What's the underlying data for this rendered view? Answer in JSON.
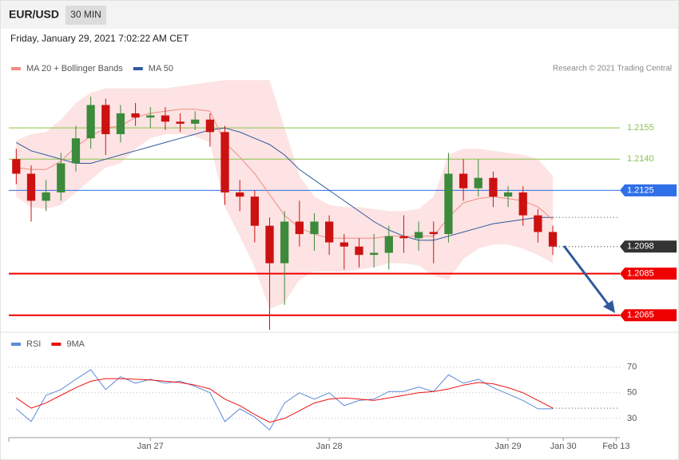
{
  "header": {
    "symbol": "EUR/USD",
    "timeframe": "30 MIN",
    "timestamp": "Friday, January 29, 2021 7:02:22 AM CET"
  },
  "chart_data": [
    {
      "type": "candlestick",
      "credit": "Research © 2021 Trading Central",
      "x": [
        6,
        8,
        10,
        12,
        14,
        16,
        18,
        20,
        22,
        24,
        26,
        28,
        30,
        32,
        34,
        36,
        38,
        40,
        42,
        44,
        46,
        48,
        50,
        52,
        54,
        56,
        58,
        60,
        62,
        64,
        66,
        68,
        70,
        72,
        74,
        76,
        78
      ],
      "open": [
        1.214,
        1.2133,
        1.212,
        1.2124,
        1.2138,
        1.215,
        1.2166,
        1.2152,
        1.2162,
        1.216,
        1.2161,
        1.2158,
        1.2157,
        1.2159,
        1.2153,
        1.2124,
        1.2122,
        1.2108,
        1.209,
        1.211,
        1.2104,
        1.211,
        1.21,
        1.2098,
        1.2094,
        1.2095,
        1.2103,
        1.2102,
        1.2105,
        1.2104,
        1.2133,
        1.2126,
        1.2131,
        1.2122,
        1.2124,
        1.2113,
        1.2105
      ],
      "high": [
        1.2145,
        1.2137,
        1.213,
        1.2143,
        1.2156,
        1.217,
        1.2169,
        1.2166,
        1.2167,
        1.2165,
        1.2165,
        1.2162,
        1.2163,
        1.2162,
        1.2156,
        1.213,
        1.2125,
        1.2112,
        1.2115,
        1.212,
        1.2114,
        1.2113,
        1.2104,
        1.2102,
        1.2104,
        1.2108,
        1.2113,
        1.211,
        1.211,
        1.2143,
        1.214,
        1.214,
        1.2134,
        1.2127,
        1.2127,
        1.2116,
        1.2108
      ],
      "low": [
        1.2128,
        1.211,
        1.2115,
        1.212,
        1.2134,
        1.2145,
        1.2142,
        1.2148,
        1.2156,
        1.2155,
        1.2154,
        1.2153,
        1.2154,
        1.2146,
        1.2118,
        1.2115,
        1.21,
        1.2058,
        1.207,
        1.2098,
        1.2096,
        1.2094,
        1.2087,
        1.2088,
        1.2088,
        1.2087,
        1.2095,
        1.2096,
        1.209,
        1.21,
        1.212,
        1.2122,
        1.2117,
        1.2117,
        1.2108,
        1.21,
        1.2094
      ],
      "close": [
        1.2133,
        1.212,
        1.2124,
        1.2138,
        1.215,
        1.2166,
        1.2152,
        1.2162,
        1.216,
        1.2161,
        1.2158,
        1.2157,
        1.2159,
        1.2153,
        1.2124,
        1.2122,
        1.2108,
        1.209,
        1.211,
        1.2104,
        1.211,
        1.21,
        1.2098,
        1.2094,
        1.2095,
        1.2103,
        1.2102,
        1.2105,
        1.2104,
        1.2133,
        1.2126,
        1.2131,
        1.2122,
        1.2124,
        1.2113,
        1.2105,
        1.2098
      ],
      "up_color": "#3c8a3c",
      "down_color": "#cc1111",
      "series": [
        {
          "name": "MA 20 + Bollinger Bands",
          "color": "#f28b82",
          "band_color": "#fde3e3",
          "values": [
            1.2136,
            1.2135,
            1.2135,
            1.2139,
            1.2146,
            1.2151,
            1.2155,
            1.2156,
            1.216,
            1.2162,
            1.2163,
            1.2164,
            1.2164,
            1.2163,
            1.2148,
            1.2141,
            1.2133,
            1.2123,
            1.2113,
            1.2107,
            1.2104,
            1.2102,
            1.2102,
            1.2102,
            1.2102,
            1.2103,
            1.2103,
            1.2103,
            1.2103,
            1.2112,
            1.2119,
            1.2121,
            1.2122,
            1.2121,
            1.212,
            1.2117,
            1.2111
          ],
          "band_upper": [
            1.2149,
            1.2152,
            1.2153,
            1.2159,
            1.2167,
            1.2172,
            1.2174,
            1.2174,
            1.2174,
            1.2174,
            1.2174,
            1.2175,
            1.2176,
            1.2177,
            1.2178,
            1.2178,
            1.2178,
            1.2178,
            1.2155,
            1.2132,
            1.2122,
            1.2118,
            1.2117,
            1.2117,
            1.2116,
            1.2115,
            1.2115,
            1.2116,
            1.2122,
            1.2142,
            1.2145,
            1.2145,
            1.2144,
            1.2143,
            1.2142,
            1.214,
            1.2132
          ],
          "band_lower": [
            1.2122,
            1.2117,
            1.2116,
            1.2118,
            1.2124,
            1.213,
            1.2136,
            1.2138,
            1.2145,
            1.215,
            1.2152,
            1.2152,
            1.2151,
            1.2148,
            1.2117,
            1.2103,
            1.2088,
            1.2068,
            1.2071,
            1.2082,
            1.2086,
            1.2086,
            1.2086,
            1.2087,
            1.2088,
            1.209,
            1.209,
            1.2089,
            1.2084,
            1.2082,
            1.2092,
            1.2097,
            1.2099,
            1.2099,
            1.2097,
            1.2094,
            1.209
          ]
        },
        {
          "name": "MA 50",
          "color": "#2e5a9c",
          "values": [
            1.2148,
            1.2144,
            1.2142,
            1.214,
            1.2138,
            1.2138,
            1.214,
            1.2142,
            1.2144,
            1.2146,
            1.2148,
            1.215,
            1.2152,
            1.2154,
            1.2155,
            1.2153,
            1.215,
            1.2147,
            1.2142,
            1.2135,
            1.213,
            1.2125,
            1.212,
            1.2115,
            1.211,
            1.2106,
            1.2103,
            1.2101,
            1.2101,
            1.2103,
            1.2105,
            1.2107,
            1.2109,
            1.211,
            1.2111,
            1.2112,
            1.2112
          ]
        }
      ],
      "levels": [
        {
          "value": 1.2155,
          "label": "1.2155",
          "color": "#8bc34a",
          "style": "text"
        },
        {
          "value": 1.214,
          "label": "1.2140",
          "color": "#8bc34a",
          "style": "text"
        },
        {
          "value": 1.2125,
          "label": "1.2125",
          "color": "#2f6fe8",
          "style": "box"
        },
        {
          "value": 1.2098,
          "label": "1.2098",
          "color": "#333333",
          "style": "current"
        },
        {
          "value": 1.2085,
          "label": "1.2085",
          "color": "#ee0000",
          "style": "box"
        },
        {
          "value": 1.2065,
          "label": "1.2065",
          "color": "#ee0000",
          "style": "box"
        }
      ],
      "xlim": [
        5,
        87
      ],
      "ylim": [
        1.2058,
        1.218
      ]
    },
    {
      "type": "line",
      "x": [
        6,
        8,
        10,
        12,
        14,
        16,
        18,
        20,
        22,
        24,
        26,
        28,
        30,
        32,
        34,
        36,
        38,
        40,
        42,
        44,
        46,
        48,
        50,
        52,
        54,
        56,
        58,
        60,
        62,
        64,
        66,
        68,
        70,
        72,
        74,
        76,
        78
      ],
      "series": [
        {
          "name": "RSI",
          "color": "#5b8bd9",
          "values": [
            37.5,
            27.5,
            48,
            52.5,
            60.5,
            68,
            52.5,
            62.5,
            57.5,
            60.5,
            57.5,
            59,
            55,
            50,
            27.5,
            37.5,
            31,
            21,
            42,
            50,
            45,
            50,
            40,
            44,
            45,
            51,
            51,
            54.5,
            51,
            64,
            57.5,
            60.5,
            54,
            49,
            44,
            37.5,
            37.5
          ]
        },
        {
          "name": "9MA",
          "color": "#ee1111",
          "values": [
            46,
            38,
            42,
            48,
            54,
            59,
            61,
            61,
            60.5,
            60,
            59,
            58,
            56,
            53,
            45,
            40,
            33,
            27,
            30,
            36,
            42,
            45,
            46,
            45,
            44,
            46,
            48,
            50,
            51,
            53,
            56,
            58,
            57,
            54,
            50,
            44,
            38
          ]
        }
      ],
      "xlim": [
        5,
        87
      ],
      "ylim": [
        15,
        86
      ],
      "yticks": [
        30,
        50,
        70
      ],
      "grid": true,
      "xticks": [
        {
          "value": 24,
          "label": "Jan 27"
        },
        {
          "value": 48,
          "label": "Jan 28"
        },
        {
          "value": 72,
          "label": "Jan 29"
        },
        {
          "value": 79.4,
          "label": "Jan 30"
        },
        {
          "value": 86.5,
          "label": "Feb 13"
        }
      ]
    }
  ]
}
